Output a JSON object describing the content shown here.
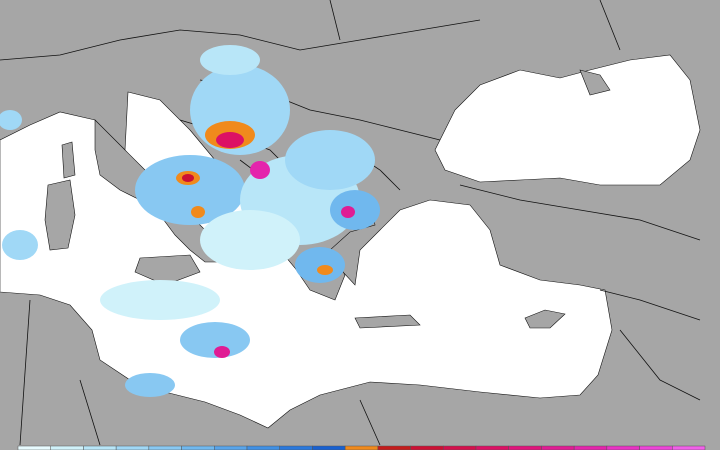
{
  "legend": {
    "colors": [
      "#e8fbff",
      "#d0f2fa",
      "#b8e6f8",
      "#a0d8f6",
      "#88c8f2",
      "#70b8ee",
      "#58a4ea",
      "#4090e4",
      "#2a78dc",
      "#1860d0",
      "#f08a1c",
      "#c41c1c",
      "#cc1034",
      "#d4104c",
      "#dc1064",
      "#e0147c",
      "#e01c94",
      "#e424ac",
      "#e832c4",
      "#ec44d8",
      "#f060e8"
    ]
  }
}
